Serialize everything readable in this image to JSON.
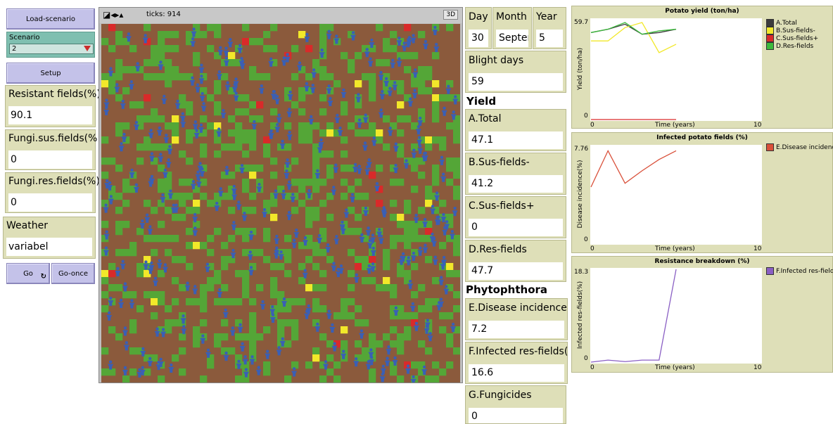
{
  "left_panel": {
    "load_button": "Load-scenario",
    "scenario_label": "Scenario",
    "scenario_value": "2",
    "setup_button": "Setup",
    "resistant_label": "Resistant fields(%)",
    "resistant_value": "90.1",
    "fungi_sus_label": "Fungi.sus.fields(%",
    "fungi_sus_value": "0",
    "fungi_res_label": "Fungi.res.fields(%)",
    "fungi_res_value": "0",
    "weather_label": "Weather",
    "weather_value": "variabel",
    "go_button": "Go",
    "go_once_button": "Go-once"
  },
  "view": {
    "ticks_text": "ticks: 914",
    "three_d": "3D",
    "colors": {
      "soil": "#8b5a3c",
      "resistant": "#54a637",
      "susceptible": "#f2e82a",
      "infected": "#d92a2a",
      "farmer": "#3a5fb5"
    }
  },
  "monitors": {
    "day_label": "Day",
    "day_value": "30",
    "month_label": "Month",
    "month_value": "Septeml",
    "year_label": "Year",
    "year_value": "5",
    "blight_label": "Blight days",
    "blight_value": "59",
    "yield_note": "Yield",
    "a_label": "A.Total",
    "a_value": "47.1",
    "b_label": "B.Sus-fields-",
    "b_value": "41.2",
    "c_label": "C.Sus-fields+",
    "c_value": "0",
    "d_label": "D.Res-fields",
    "d_value": "47.7",
    "phyto_note": "Phytophthora",
    "e_label": "E.Disease incidence(%",
    "e_value": "7.2",
    "f_label": "F.Infected res-fields(%",
    "f_value": "16.6",
    "g_label": "G.Fungicides",
    "g_value": "0"
  },
  "chart_data": [
    {
      "type": "line",
      "title": "Potato yield (ton/ha)",
      "xlabel": "Time (years)",
      "ylabel": "Yield (ton/ha)",
      "xlim": [
        0,
        10
      ],
      "ylim": [
        0,
        59.7
      ],
      "x_ticks": [
        "0",
        "10"
      ],
      "y_ticks": [
        "0",
        "59.7"
      ],
      "series": [
        {
          "name": "A.Total",
          "color": "#3c3c3c",
          "x": [
            0,
            1,
            2,
            3,
            4,
            5
          ],
          "values": [
            52,
            54,
            57,
            51,
            52,
            54
          ]
        },
        {
          "name": "B.Sus-fields-",
          "color": "#f2e82a",
          "x": [
            0,
            1,
            2,
            3,
            4,
            5
          ],
          "values": [
            47,
            47,
            55,
            58,
            40,
            45
          ]
        },
        {
          "name": "C.Sus-fields+",
          "color": "#d92a2a",
          "x": [
            0,
            5
          ],
          "values": [
            0,
            0
          ]
        },
        {
          "name": "D.Res-fields",
          "color": "#3cba3c",
          "x": [
            0,
            1,
            2,
            3,
            4,
            5
          ],
          "values": [
            52,
            54,
            58,
            51,
            53,
            54
          ]
        }
      ]
    },
    {
      "type": "line",
      "title": "Infected potato fields (%)",
      "xlabel": "Time (years)",
      "ylabel": "Disease incidence(%)",
      "xlim": [
        0,
        10
      ],
      "ylim": [
        0,
        7.76
      ],
      "x_ticks": [
        "0",
        "10"
      ],
      "y_ticks": [
        "0",
        "7.76"
      ],
      "series": [
        {
          "name": "E.Disease incidence",
          "color": "#d9503a",
          "x": [
            0,
            1,
            2,
            3,
            4,
            5
          ],
          "values": [
            4.5,
            7.4,
            4.8,
            5.8,
            6.7,
            7.4
          ]
        }
      ]
    },
    {
      "type": "line",
      "title": "Resistance breakdown (%)",
      "xlabel": "Time (years)",
      "ylabel": "Infected res-fields(%)",
      "xlim": [
        0,
        10
      ],
      "ylim": [
        0,
        18.3
      ],
      "x_ticks": [
        "0",
        "10"
      ],
      "y_ticks": [
        "0",
        "18.3"
      ],
      "series": [
        {
          "name": "F.Infected res-field",
          "color": "#8a5fc4",
          "x": [
            0,
            1,
            2,
            3,
            4,
            5
          ],
          "values": [
            0,
            0.4,
            0.1,
            0.4,
            0.4,
            18.3
          ]
        }
      ]
    }
  ]
}
